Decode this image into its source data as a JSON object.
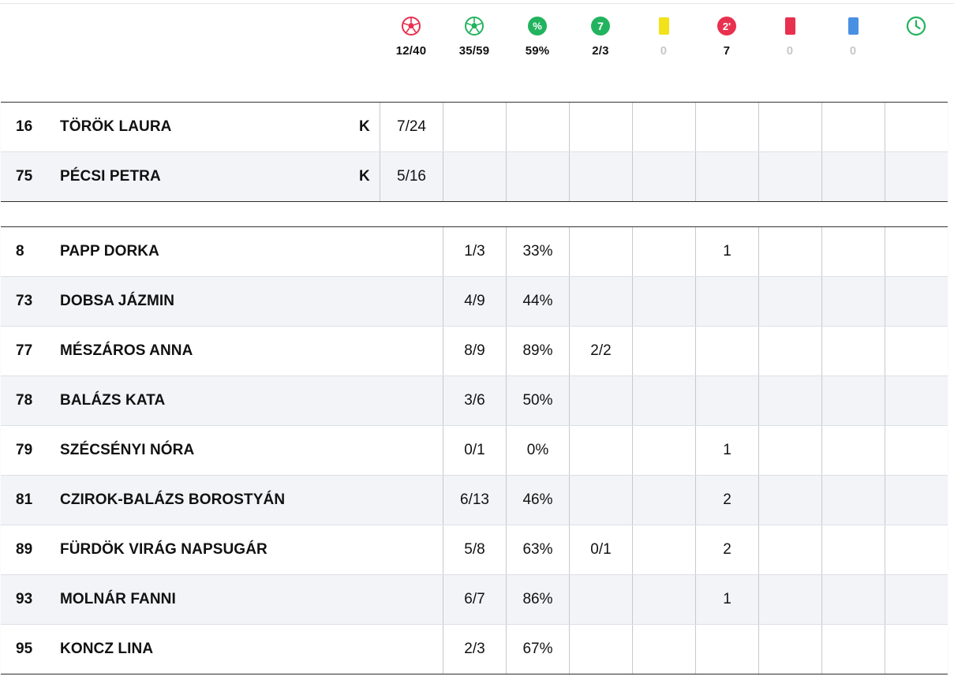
{
  "totals": [
    {
      "icon": "goal-ball-red-icon",
      "value": "12/40",
      "muted": false
    },
    {
      "icon": "shot-ball-green-icon",
      "value": "35/59",
      "muted": false
    },
    {
      "icon": "percent-icon",
      "value": "59%",
      "muted": false
    },
    {
      "icon": "seven-meter-icon",
      "icon_text": "7",
      "value": "2/3",
      "muted": false
    },
    {
      "icon": "yellow-card-icon",
      "value": "0",
      "muted": true
    },
    {
      "icon": "two-minute-icon",
      "icon_text": "2'",
      "value": "7",
      "muted": false
    },
    {
      "icon": "red-card-icon",
      "value": "0",
      "muted": true
    },
    {
      "icon": "blue-card-icon",
      "value": "0",
      "muted": true
    },
    {
      "icon": "clock-icon",
      "value": "",
      "muted": false
    }
  ],
  "colors": {
    "red": "#e8304f",
    "green": "#22b35e",
    "yellow": "#f2e21a",
    "blue": "#4a90e2"
  },
  "goalkeepers": [
    {
      "number": "16",
      "name": "TÖRÖK LAURA",
      "flag": "K",
      "cells": [
        "7/24",
        "",
        "",
        "",
        "",
        "",
        "",
        "",
        ""
      ]
    },
    {
      "number": "75",
      "name": "PÉCSI PETRA",
      "flag": "K",
      "cells": [
        "5/16",
        "",
        "",
        "",
        "",
        "",
        "",
        "",
        ""
      ]
    }
  ],
  "players": [
    {
      "number": "8",
      "name": "PAPP DORKA",
      "cells": [
        "1/3",
        "33%",
        "",
        "",
        "1",
        "",
        "",
        ""
      ]
    },
    {
      "number": "73",
      "name": "DOBSA JÁZMIN",
      "cells": [
        "4/9",
        "44%",
        "",
        "",
        "",
        "",
        "",
        ""
      ]
    },
    {
      "number": "77",
      "name": "MÉSZÁROS ANNA",
      "cells": [
        "8/9",
        "89%",
        "2/2",
        "",
        "",
        "",
        "",
        ""
      ]
    },
    {
      "number": "78",
      "name": "BALÁZS KATA",
      "cells": [
        "3/6",
        "50%",
        "",
        "",
        "",
        "",
        "",
        ""
      ]
    },
    {
      "number": "79",
      "name": "SZÉCSÉNYI NÓRA",
      "cells": [
        "0/1",
        "0%",
        "",
        "",
        "1",
        "",
        "",
        ""
      ]
    },
    {
      "number": "81",
      "name": "CZIROK-BALÁZS BOROSTYÁN",
      "cells": [
        "6/13",
        "46%",
        "",
        "",
        "2",
        "",
        "",
        ""
      ]
    },
    {
      "number": "89",
      "name": "FÜRDÖK VIRÁG NAPSUGÁR",
      "cells": [
        "5/8",
        "63%",
        "0/1",
        "",
        "2",
        "",
        "",
        ""
      ]
    },
    {
      "number": "93",
      "name": "MOLNÁR FANNI",
      "cells": [
        "6/7",
        "86%",
        "",
        "",
        "1",
        "",
        "",
        ""
      ]
    },
    {
      "number": "95",
      "name": "KONCZ LINA",
      "cells": [
        "2/3",
        "67%",
        "",
        "",
        "",
        "",
        "",
        ""
      ]
    }
  ]
}
